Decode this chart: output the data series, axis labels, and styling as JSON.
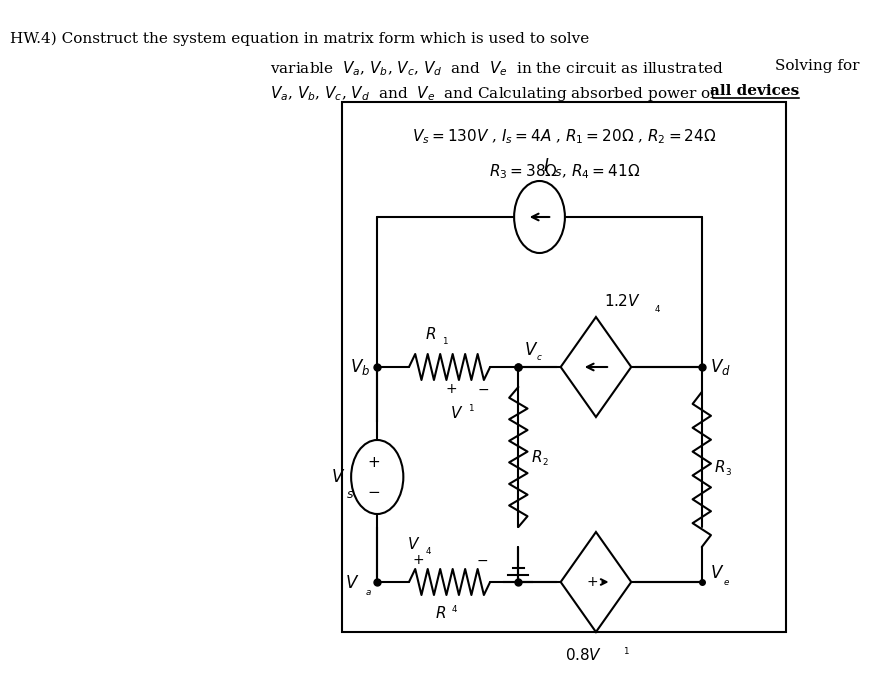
{
  "title_line1": "HW.4) Construct the system equation in matrix form which is used to solve",
  "title_line2": "variable  $V_a$, $V_b$, $V_c$, $V_d$  and  $V_e$  in the circuit as illustrated",
  "title_line2_right": "Solving for",
  "title_line3_left": "$V_a$, $V_b$, $V_c$, $V_d$  and  $V_e$  and Calculating absorbed power of ",
  "title_line3_bold": "all devices",
  "params_line1": "$V_s = 130V$ , $I_s = 4A$ , $R_1 = 20\\Omega$ , $R_2 = 24\\Omega$",
  "params_line2": "$R_3 = 38\\Omega$ , $R_4 = 41\\Omega$",
  "background_color": "#ffffff",
  "box_color": "#000000",
  "line_color": "#000000",
  "font_size_title": 11,
  "font_size_params": 11,
  "font_size_labels": 11
}
